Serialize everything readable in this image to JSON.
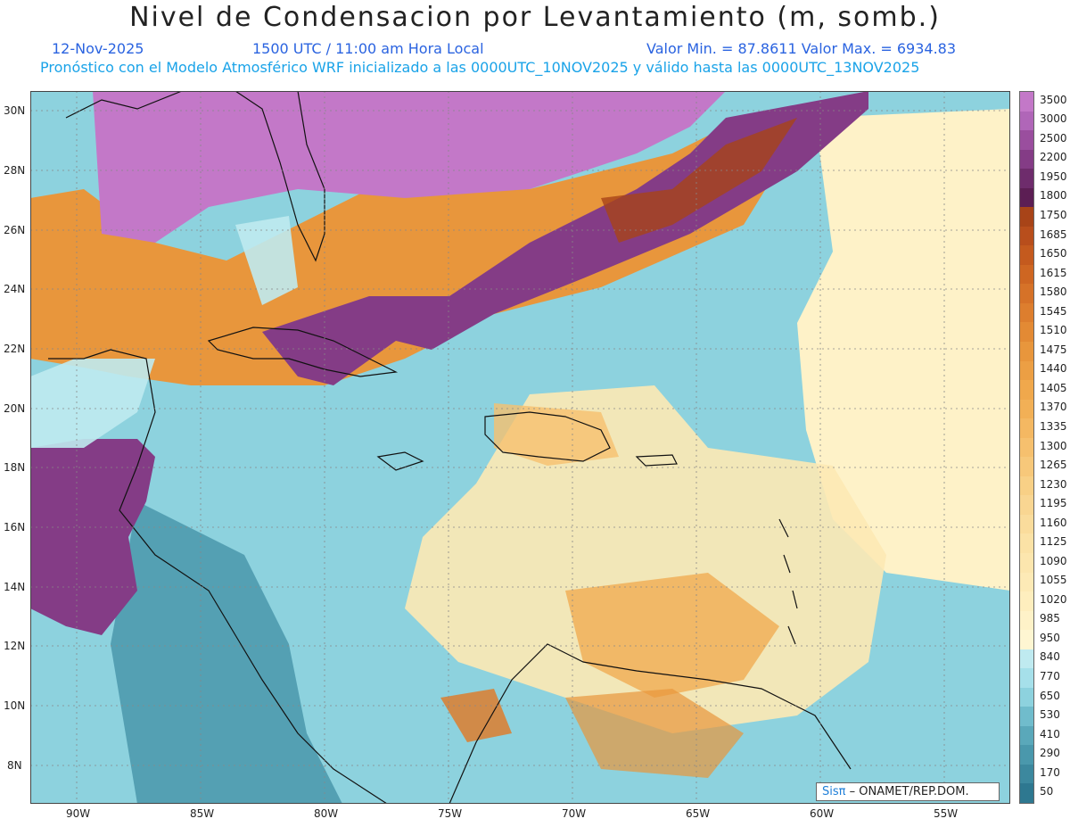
{
  "header": {
    "title": "Nivel de Condensacion por Levantamiento (m, somb.)",
    "date": "12-Nov-2025",
    "time": "1500 UTC / 11:00 am Hora Local",
    "min_max": "Valor Min. = 87.8611   Valor Max. = 6934.83",
    "model_info": "Pronóstico con el Modelo Atmosférico WRF inicializado a las 0000UTC_10NOV2025 y válido hasta las  0000UTC_13NOV2025"
  },
  "axes": {
    "lat_labels": [
      "30N",
      "28N",
      "26N",
      "24N",
      "22N",
      "20N",
      "18N",
      "16N",
      "14N",
      "12N",
      "10N",
      "8N"
    ],
    "lon_labels": [
      "90W",
      "85W",
      "80W",
      "75W",
      "70W",
      "65W",
      "60W",
      "55W"
    ]
  },
  "colorbar": {
    "labels": [
      "3500",
      "3000",
      "2500",
      "2200",
      "1950",
      "1800",
      "1750",
      "1685",
      "1650",
      "1615",
      "1580",
      "1545",
      "1510",
      "1475",
      "1440",
      "1405",
      "1370",
      "1335",
      "1300",
      "1265",
      "1230",
      "1195",
      "1160",
      "1125",
      "1090",
      "1055",
      "1020",
      "985",
      "950",
      "840",
      "770",
      "650",
      "530",
      "410",
      "290",
      "170",
      "50"
    ],
    "colors": [
      "#c378c8",
      "#b066b8",
      "#9a4e9e",
      "#843c86",
      "#6e2c6c",
      "#5c1e54",
      "#a84418",
      "#b84e1c",
      "#c45a1e",
      "#ce6622",
      "#d67228",
      "#dd7e2e",
      "#e38a34",
      "#e8963c",
      "#ec9f44",
      "#f0a84c",
      "#f2b056",
      "#f4b862",
      "#f6c06e",
      "#f7c87a",
      "#f8d086",
      "#f9d692",
      "#fadc9c",
      "#fbe2a6",
      "#fce6ae",
      "#fdeab6",
      "#feeebe",
      "#fef2c8",
      "#fef6d2",
      "#bfeaf0",
      "#a6e0ea",
      "#8dd2de",
      "#70bccc",
      "#5aa8ba",
      "#4a98ac",
      "#3c889e",
      "#2e7890"
    ]
  },
  "credit": {
    "sis": "Sis",
    "pi": "π",
    "org": "– ONAMET/REP.DOM."
  }
}
